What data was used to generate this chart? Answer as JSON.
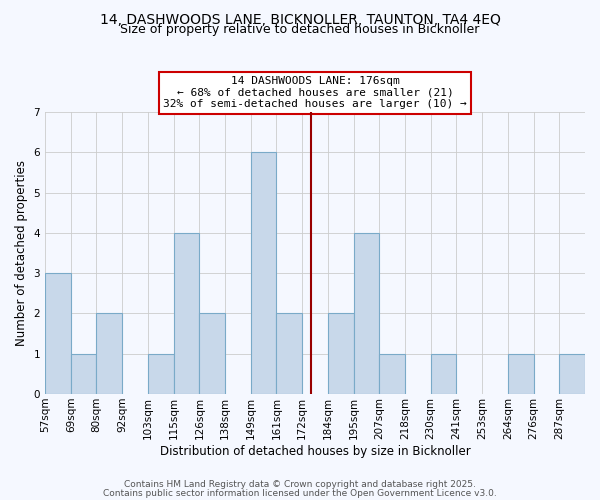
{
  "title_line1": "14, DASHWOODS LANE, BICKNOLLER, TAUNTON, TA4 4EQ",
  "title_line2": "Size of property relative to detached houses in Bicknoller",
  "xlabel": "Distribution of detached houses by size in Bicknoller",
  "ylabel": "Number of detached properties",
  "bin_labels": [
    "57sqm",
    "69sqm",
    "80sqm",
    "92sqm",
    "103sqm",
    "115sqm",
    "126sqm",
    "138sqm",
    "149sqm",
    "161sqm",
    "172sqm",
    "184sqm",
    "195sqm",
    "207sqm",
    "218sqm",
    "230sqm",
    "241sqm",
    "253sqm",
    "264sqm",
    "276sqm",
    "287sqm"
  ],
  "counts": [
    3,
    1,
    2,
    0,
    1,
    4,
    2,
    0,
    6,
    2,
    0,
    2,
    4,
    1,
    0,
    1,
    0,
    0,
    1,
    0,
    1
  ],
  "bar_color": "#c8d8ea",
  "bar_edge_color": "#7aaac8",
  "property_line_color": "#990000",
  "annotation_title": "14 DASHWOODS LANE: 176sqm",
  "annotation_line2": "← 68% of detached houses are smaller (21)",
  "annotation_line3": "32% of semi-detached houses are larger (10) →",
  "annotation_box_facecolor": "#ffffff",
  "annotation_box_edgecolor": "#cc0000",
  "ylim": [
    0,
    7
  ],
  "yticks": [
    0,
    1,
    2,
    3,
    4,
    5,
    6,
    7
  ],
  "bin_edges": [
    57,
    69,
    80,
    92,
    103,
    115,
    126,
    138,
    149,
    161,
    172,
    184,
    195,
    207,
    218,
    230,
    241,
    253,
    264,
    276,
    287,
    298
  ],
  "footer_line1": "Contains HM Land Registry data © Crown copyright and database right 2025.",
  "footer_line2": "Contains public sector information licensed under the Open Government Licence v3.0.",
  "background_color": "#f5f8ff",
  "grid_color": "#cccccc",
  "property_line_bin_index": 10,
  "title_fontsize": 10,
  "subtitle_fontsize": 9,
  "axis_label_fontsize": 8.5,
  "tick_fontsize": 7.5,
  "annotation_fontsize": 8,
  "footer_fontsize": 6.5
}
